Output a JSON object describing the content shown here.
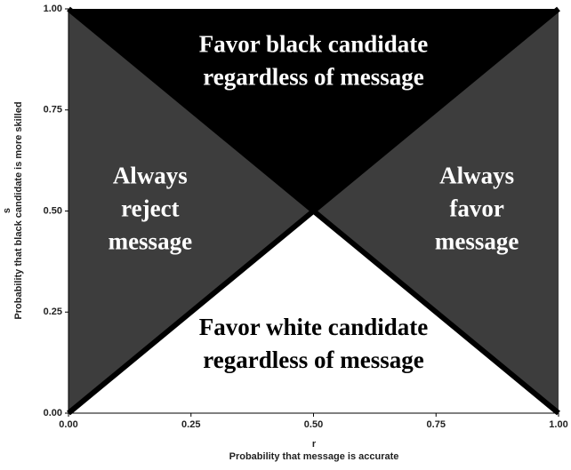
{
  "chart_data": {
    "type": "region",
    "xlabel": "r",
    "xlabel_sub": "Probability that message is accurate",
    "ylabel": "s",
    "ylabel_sub": "Probability that black candidate is more skilled",
    "xlim": [
      0,
      1
    ],
    "ylim": [
      0,
      1
    ],
    "xticks": [
      {
        "value": 0,
        "label": "0.00"
      },
      {
        "value": 0.25,
        "label": "0.25"
      },
      {
        "value": 0.5,
        "label": "0.50"
      },
      {
        "value": 0.75,
        "label": "0.75"
      },
      {
        "value": 1,
        "label": "1.00"
      }
    ],
    "yticks": [
      {
        "value": 0,
        "label": "0.00"
      },
      {
        "value": 0.25,
        "label": "0.25"
      },
      {
        "value": 0.5,
        "label": "0.50"
      },
      {
        "value": 0.75,
        "label": "0.75"
      },
      {
        "value": 1,
        "label": "1.00"
      }
    ],
    "regions": [
      {
        "label": [
          "Favor black candidate",
          "regardless of message"
        ],
        "color": "#000000",
        "text_color": "#ffffff",
        "x": [
          0,
          1,
          0.5
        ],
        "y": [
          1,
          1,
          0.5
        ]
      },
      {
        "label": [
          "Always",
          "reject",
          "message"
        ],
        "color": "#3d3d3d",
        "text_color": "#ffffff",
        "x": [
          0,
          0,
          0.5
        ],
        "y": [
          0,
          1,
          0.5
        ]
      },
      {
        "label": [
          "Always",
          "favor",
          "message"
        ],
        "color": "#3d3d3d",
        "text_color": "#ffffff",
        "x": [
          1,
          1,
          0.5
        ],
        "y": [
          0,
          1,
          0.5
        ]
      },
      {
        "label": [
          "Favor white candidate",
          "regardless of message"
        ],
        "color": "#ffffff",
        "text_color": "#000000",
        "x": [
          0,
          1,
          0.5
        ],
        "y": [
          0,
          0,
          0.5
        ]
      }
    ],
    "boundaries": [
      {
        "x": [
          0,
          1
        ],
        "y": [
          0,
          1
        ]
      },
      {
        "x": [
          0,
          1
        ],
        "y": [
          1,
          0
        ]
      }
    ],
    "boundary_color": "#000000"
  }
}
